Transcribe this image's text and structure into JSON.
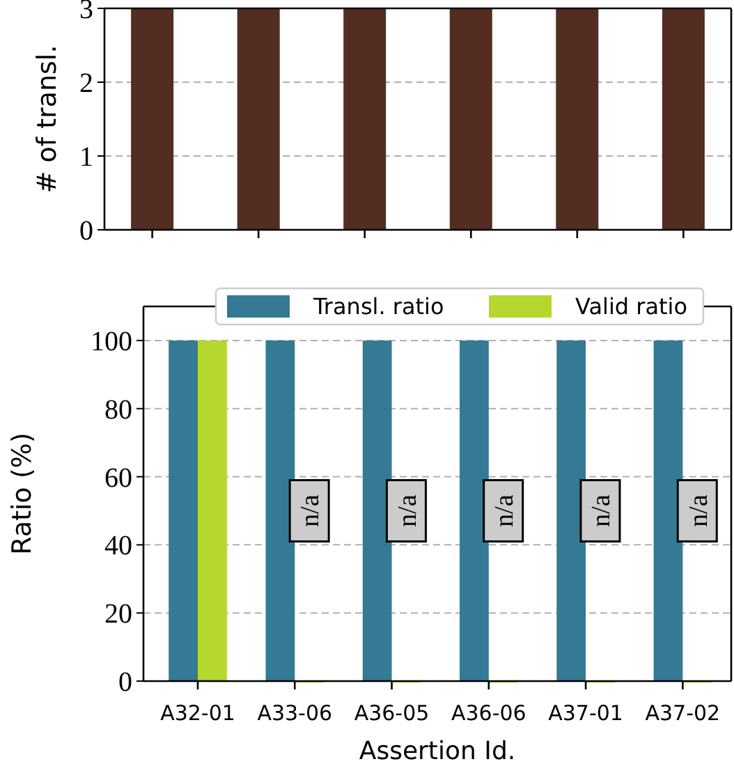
{
  "chart_data": [
    {
      "type": "bar",
      "categories": [
        null,
        null,
        null,
        null,
        null,
        null
      ],
      "values": [
        3,
        3,
        3,
        3,
        3,
        3
      ],
      "color": "#532d21",
      "ylim": [
        0,
        3
      ],
      "yticks": [
        0,
        1,
        2,
        3
      ],
      "grid": "y",
      "ylabel": "# of transl.",
      "tick_labels": "y"
    },
    {
      "type": "bar",
      "categories": [
        "A32-01",
        "A33-06",
        "A36-05",
        "A36-06",
        "A37-01",
        "A37-02"
      ],
      "series": [
        {
          "name": "Transl. ratio",
          "color": "#347a94",
          "values": [
            100,
            100,
            100,
            100,
            100,
            100
          ]
        },
        {
          "name": "Valid ratio",
          "color": "#b5d730",
          "values": [
            100,
            0,
            0,
            0,
            0,
            0
          ]
        }
      ],
      "ylim": [
        0,
        110
      ],
      "yticks": [
        0,
        20,
        40,
        60,
        80,
        100
      ],
      "grid": "y",
      "xlabel": "Assertion Id.",
      "ylabel": "Ratio (%)",
      "legend": "top",
      "annotations": [
        {
          "text": "n/a",
          "x": "A33-06",
          "y": 50
        },
        {
          "text": "n/a",
          "x": "A36-05",
          "y": 50
        },
        {
          "text": "n/a",
          "x": "A36-06",
          "y": 50
        },
        {
          "text": "n/a",
          "x": "A37-01",
          "y": 50
        },
        {
          "text": "n/a",
          "x": "A37-02",
          "y": 50
        }
      ]
    }
  ]
}
